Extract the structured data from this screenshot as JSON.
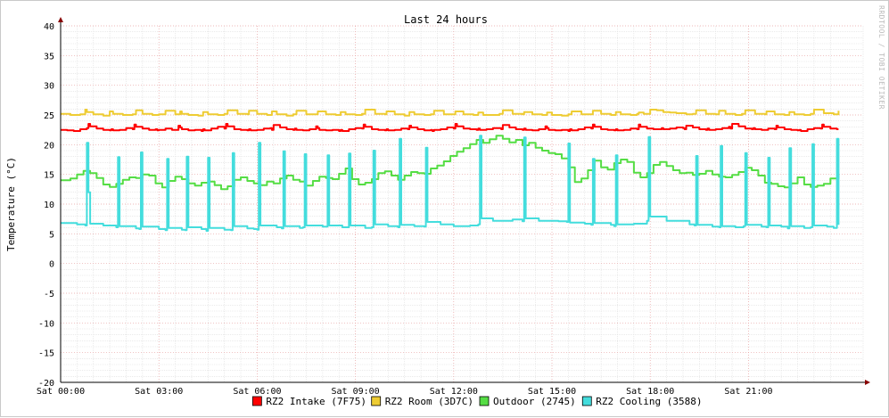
{
  "chart_data": {
    "type": "line",
    "title": "Last 24 hours",
    "ylabel": "Temperature (°C)",
    "xlabel": "",
    "watermark": "RRDTOOL / TOBI OETIKER",
    "ylim": [
      -20,
      40
    ],
    "yticks": [
      -20,
      -15,
      -10,
      -5,
      0,
      5,
      10,
      15,
      20,
      25,
      30,
      35,
      40
    ],
    "ytick_labels": [
      "-20",
      "-15",
      "-10",
      "-5",
      "0",
      "5",
      "10",
      "15",
      "20",
      "25",
      "30",
      "35",
      "40"
    ],
    "xlim": [
      0,
      24.5
    ],
    "xticks": [
      0,
      3,
      6,
      9,
      12,
      15,
      18,
      21
    ],
    "xtick_labels": [
      "Sat 00:00",
      "Sat 03:00",
      "Sat 06:00",
      "Sat 09:00",
      "Sat 12:00",
      "Sat 15:00",
      "Sat 18:00",
      "Sat 21:00"
    ],
    "grid": true,
    "legend_position": "bottom",
    "series": [
      {
        "name": "RZ2 Intake (7F75)",
        "color": "#ff0000",
        "x": [
          0,
          0.2,
          0.4,
          0.6,
          0.8,
          0.85,
          0.9,
          1.1,
          1.3,
          1.5,
          1.55,
          1.6,
          1.8,
          2,
          2.2,
          2.25,
          2.3,
          2.5,
          2.7,
          2.9,
          2.95,
          3,
          3.2,
          3.4,
          3.6,
          3.65,
          3.7,
          3.9,
          4.1,
          4.3,
          4.35,
          4.4,
          4.6,
          4.8,
          5,
          5.05,
          5.1,
          5.3,
          5.5,
          5.7,
          5.75,
          5.8,
          6,
          6.2,
          6.4,
          6.45,
          6.5,
          6.7,
          6.9,
          7.1,
          7.15,
          7.2,
          7.4,
          7.6,
          7.8,
          7.85,
          7.9,
          8.1,
          8.3,
          8.5,
          8.55,
          8.6,
          8.8,
          9,
          9.2,
          9.25,
          9.3,
          9.5,
          9.7,
          9.9,
          9.95,
          10,
          10.2,
          10.4,
          10.6,
          10.65,
          10.7,
          10.9,
          11.1,
          11.3,
          11.35,
          11.4,
          11.6,
          11.8,
          12,
          12.05,
          12.1,
          12.3,
          12.5,
          12.7,
          12.75,
          12.8,
          13,
          13.2,
          13.4,
          13.45,
          13.5,
          13.7,
          13.9,
          14.1,
          14.15,
          14.2,
          14.4,
          14.6,
          14.8,
          14.85,
          14.9,
          15.1,
          15.3,
          15.5,
          15.55,
          15.6,
          15.8,
          16,
          16.2,
          16.25,
          16.3,
          16.5,
          16.7,
          16.9,
          16.95,
          17,
          17.2,
          17.4,
          17.6,
          17.65,
          17.7,
          17.9,
          18.1,
          18.3,
          18.35,
          18.4,
          18.6,
          18.8,
          19,
          19.05,
          19.1,
          19.3,
          19.5,
          19.7,
          19.75,
          19.8,
          20,
          20.2,
          20.4,
          20.45,
          20.5,
          20.7,
          20.9,
          21.1,
          21.15,
          21.2,
          21.4,
          21.6,
          21.8,
          21.85,
          21.9,
          22.1,
          22.3,
          22.5,
          22.55,
          22.6,
          22.8,
          23,
          23.2,
          23.25,
          23.3,
          23.5,
          23.7,
          23.75
        ],
        "values": [
          22.5,
          22.4,
          22.3,
          22.6,
          22.8,
          23.5,
          23.1,
          22.7,
          22.5,
          22.4,
          22.6,
          22.4,
          22.5,
          22.8,
          22.6,
          23.4,
          23,
          22.7,
          22.5,
          22.6,
          22.4,
          22.5,
          22.7,
          22.5,
          23.2,
          22.9,
          22.6,
          22.4,
          22.5,
          22.3,
          22.6,
          22.4,
          22.7,
          23,
          22.7,
          23.5,
          23.1,
          22.6,
          22.5,
          22.4,
          22.6,
          22.4,
          22.5,
          22.7,
          22.8,
          22.5,
          23.3,
          22.9,
          22.6,
          22.5,
          22.7,
          22.5,
          22.4,
          22.6,
          23.1,
          22.8,
          22.5,
          22.4,
          22.5,
          22.3,
          22.5,
          22.3,
          22.6,
          22.8,
          22.7,
          23.4,
          23,
          22.6,
          22.5,
          22.4,
          22.6,
          22.4,
          22.5,
          22.7,
          22.6,
          23.2,
          22.9,
          22.6,
          22.4,
          22.5,
          22.3,
          22.5,
          22.6,
          22.9,
          22.7,
          23.5,
          23.1,
          22.7,
          22.6,
          22.5,
          22.7,
          22.5,
          22.6,
          22.8,
          22.8,
          22.6,
          23.3,
          22.9,
          22.6,
          22.5,
          22.7,
          22.5,
          22.4,
          22.6,
          23.1,
          22.8,
          22.5,
          22.4,
          22.5,
          22.3,
          22.6,
          22.4,
          22.6,
          22.9,
          22.7,
          23.4,
          23,
          22.6,
          22.5,
          22.4,
          22.6,
          22.4,
          22.5,
          22.7,
          22.6,
          23.4,
          23,
          22.7,
          22.6,
          22.6,
          22.8,
          22.6,
          22.7,
          22.9,
          22.8,
          22.6,
          23.2,
          22.9,
          22.6,
          22.5,
          22.7,
          22.5,
          22.6,
          22.8,
          23,
          22.7,
          23.5,
          23.1,
          22.7,
          22.6,
          22.8,
          22.6,
          22.5,
          22.7,
          22.6,
          23.2,
          22.9,
          22.6,
          22.5,
          22.4,
          22.5,
          22.3,
          22.6,
          22.8,
          22.7,
          23.4,
          23,
          22.7,
          22.6,
          22.6
        ]
      },
      {
        "name": "RZ2 Room (3D7C)",
        "color": "#eecc33",
        "x": [
          0,
          0.3,
          0.6,
          0.75,
          0.8,
          1,
          1.3,
          1.5,
          1.6,
          1.9,
          2.2,
          2.3,
          2.5,
          2.8,
          3,
          3.2,
          3.5,
          3.65,
          3.7,
          3.9,
          4.2,
          4.35,
          4.5,
          4.8,
          5,
          5.1,
          5.4,
          5.7,
          5.75,
          6,
          6.3,
          6.45,
          6.6,
          6.9,
          7.1,
          7.2,
          7.5,
          7.8,
          7.85,
          8.1,
          8.4,
          8.55,
          8.7,
          9,
          9.2,
          9.3,
          9.6,
          9.9,
          9.95,
          10.2,
          10.5,
          10.65,
          10.8,
          11.1,
          11.3,
          11.4,
          11.7,
          12,
          12.05,
          12.3,
          12.6,
          12.75,
          12.9,
          13.2,
          13.4,
          13.5,
          13.8,
          14.1,
          14.15,
          14.4,
          14.7,
          14.85,
          15,
          15.3,
          15.5,
          15.6,
          15.9,
          16.2,
          16.25,
          16.5,
          16.8,
          16.95,
          17.1,
          17.4,
          17.6,
          17.65,
          17.8,
          18,
          18.2,
          18.4,
          18.6,
          18.8,
          19.1,
          19.3,
          19.4,
          19.7,
          20,
          20.1,
          20.3,
          20.6,
          20.8,
          20.9,
          21.2,
          21.5,
          21.55,
          21.8,
          22.1,
          22.25,
          22.4,
          22.7,
          22.9,
          23,
          23.3,
          23.6,
          23.75
        ],
        "values": [
          25.2,
          25,
          25.1,
          25.9,
          25.5,
          25.1,
          24.9,
          25.6,
          25.2,
          25,
          25.1,
          25.8,
          25.2,
          25,
          25.1,
          25.7,
          25.1,
          25.6,
          25.2,
          25,
          24.9,
          25.5,
          25.1,
          25,
          25.2,
          25.8,
          25.2,
          25.1,
          25.7,
          25.2,
          25,
          25.6,
          25.1,
          24.9,
          25.1,
          25.7,
          25.1,
          25.1,
          25.6,
          25.1,
          25,
          25.5,
          25.1,
          25,
          25.2,
          25.9,
          25.2,
          25.1,
          25.6,
          25.1,
          24.9,
          25.5,
          25.1,
          25,
          25.1,
          25.7,
          25.1,
          25.1,
          25.6,
          25.1,
          25,
          25.4,
          25,
          25,
          25.2,
          25.8,
          25.2,
          25.1,
          25.5,
          25.1,
          25,
          25.4,
          25,
          24.9,
          25.1,
          25.6,
          25.1,
          25.1,
          25.7,
          25.2,
          25,
          25.5,
          25.1,
          25,
          25.2,
          25.4,
          25.2,
          25.9,
          25.8,
          25.5,
          25.4,
          25.3,
          25.1,
          25.2,
          25.8,
          25.2,
          25.1,
          25.7,
          25.2,
          25,
          25.2,
          25.8,
          25.2,
          25.1,
          25.6,
          25.1,
          25,
          25.5,
          25.1,
          25,
          25.2,
          25.9,
          25.3,
          25.1,
          25.7
        ]
      },
      {
        "name": "Outdoor (2745)",
        "color": "#55dd44",
        "x": [
          0,
          0.3,
          0.5,
          0.7,
          0.9,
          1.1,
          1.3,
          1.5,
          1.7,
          1.9,
          2.1,
          2.3,
          2.5,
          2.7,
          2.9,
          3.1,
          3.3,
          3.5,
          3.7,
          3.9,
          4.1,
          4.3,
          4.5,
          4.7,
          4.9,
          5.1,
          5.3,
          5.5,
          5.7,
          5.9,
          6.1,
          6.3,
          6.5,
          6.7,
          6.9,
          7.1,
          7.3,
          7.5,
          7.7,
          7.9,
          8.1,
          8.3,
          8.5,
          8.7,
          8.9,
          9.1,
          9.3,
          9.5,
          9.7,
          9.9,
          10.1,
          10.3,
          10.5,
          10.7,
          10.9,
          11.1,
          11.3,
          11.5,
          11.7,
          11.9,
          12.1,
          12.3,
          12.5,
          12.7,
          12.9,
          13.1,
          13.3,
          13.5,
          13.7,
          13.9,
          14.1,
          14.3,
          14.5,
          14.7,
          14.9,
          15.1,
          15.3,
          15.5,
          15.7,
          15.9,
          16.1,
          16.3,
          16.5,
          16.7,
          16.9,
          17.1,
          17.3,
          17.5,
          17.7,
          17.9,
          18.1,
          18.3,
          18.5,
          18.7,
          18.9,
          19.1,
          19.3,
          19.5,
          19.7,
          19.9,
          20.1,
          20.3,
          20.5,
          20.7,
          20.9,
          21.1,
          21.3,
          21.5,
          21.7,
          21.9,
          22.1,
          22.3,
          22.5,
          22.7,
          22.9,
          23.1,
          23.3,
          23.5,
          23.75
        ],
        "values": [
          14,
          14.3,
          15,
          15.6,
          15.2,
          14.4,
          13.3,
          12.9,
          13.4,
          14.1,
          14.5,
          14.4,
          15,
          14.8,
          13.5,
          12.8,
          13.9,
          14.6,
          14.2,
          13.5,
          13.1,
          13.6,
          13.8,
          13.2,
          12.5,
          13,
          14.1,
          14.5,
          13.9,
          13.5,
          13.2,
          13.8,
          13.5,
          14.3,
          14.8,
          14.1,
          13.8,
          13.1,
          13.9,
          14.6,
          14.4,
          14.2,
          15.1,
          16,
          14.2,
          13.3,
          13.6,
          14.2,
          15.2,
          15.5,
          14.8,
          14.1,
          14.8,
          15.4,
          15.2,
          15.1,
          16,
          16.5,
          17.2,
          18.1,
          18.8,
          19.4,
          20.1,
          20.8,
          20.3,
          20.9,
          21.5,
          21,
          20.4,
          20.8,
          19.9,
          20.3,
          19.5,
          19,
          18.6,
          18.4,
          17.7,
          16.2,
          13.7,
          14.3,
          15.7,
          17.3,
          16.2,
          15.8,
          16.9,
          17.5,
          17.1,
          15.3,
          14.5,
          15.2,
          16.6,
          17.1,
          16.4,
          15.7,
          15.2,
          15.3,
          14.9,
          15.1,
          15.6,
          15,
          14.6,
          14.5,
          14.9,
          15.4,
          16.1,
          15.7,
          14.8,
          13.6,
          13.4,
          13,
          12.8,
          13.5,
          14.5,
          13.3,
          12.9,
          13.1,
          13.4,
          14.3,
          15
        ]
      },
      {
        "name": "RZ2 Cooling (3588)",
        "color": "#44dddd",
        "x": [
          0,
          0.5,
          0.75,
          0.8,
          0.85,
          0.9,
          1.3,
          1.7,
          1.75,
          1.8,
          2.3,
          2.4,
          2.45,
          2.5,
          3,
          3.2,
          3.25,
          3.3,
          3.7,
          3.8,
          3.85,
          3.9,
          4.3,
          4.45,
          4.5,
          4.55,
          5,
          5.2,
          5.25,
          5.3,
          5.7,
          5.9,
          6,
          6.05,
          6.1,
          6.6,
          6.75,
          6.8,
          6.85,
          7.3,
          7.4,
          7.45,
          7.5,
          8,
          8.1,
          8.15,
          8.2,
          8.6,
          8.75,
          8.8,
          8.85,
          9.3,
          9.5,
          9.55,
          9.6,
          10,
          10.3,
          10.35,
          10.4,
          10.8,
          11.1,
          11.15,
          11.2,
          11.6,
          12,
          12.5,
          12.75,
          12.8,
          12.85,
          13.2,
          13.8,
          14.1,
          14.15,
          14.2,
          14.6,
          15.2,
          15.45,
          15.5,
          15.55,
          16,
          16.2,
          16.25,
          16.3,
          16.8,
          16.9,
          16.95,
          17,
          17.5,
          17.9,
          17.95,
          18,
          18.5,
          19.2,
          19.35,
          19.4,
          19.45,
          19.9,
          20.1,
          20.15,
          20.2,
          20.6,
          20.85,
          20.9,
          20.95,
          21.4,
          21.55,
          21.6,
          21.65,
          22,
          22.2,
          22.25,
          22.3,
          22.7,
          22.9,
          22.95,
          23,
          23.4,
          23.6,
          23.7,
          23.75
        ],
        "values": [
          6.8,
          6.6,
          6.4,
          20.3,
          12,
          6.7,
          6.4,
          6.1,
          17.9,
          6.3,
          5.9,
          5.8,
          18.7,
          6.2,
          5.8,
          5.6,
          17.6,
          6,
          5.7,
          5.6,
          18,
          6.1,
          5.8,
          5.5,
          17.8,
          6,
          5.7,
          5.6,
          18.6,
          6.3,
          5.9,
          5.8,
          5.7,
          20.3,
          6.4,
          6.1,
          5.9,
          18.9,
          6.3,
          6,
          6.1,
          18.4,
          6.4,
          6.2,
          6.2,
          18.2,
          6.4,
          6.1,
          6.1,
          18.5,
          6.4,
          6,
          6.1,
          19,
          6.6,
          6.3,
          6.1,
          21,
          6.5,
          6.3,
          6.2,
          19.5,
          7,
          6.6,
          6.3,
          6.4,
          6.6,
          21.5,
          7.6,
          7.2,
          7.4,
          7.1,
          21.2,
          7.6,
          7.2,
          7.1,
          7,
          20.2,
          6.9,
          6.7,
          6.5,
          17.6,
          6.8,
          6.5,
          6.3,
          18.2,
          6.6,
          6.7,
          7.2,
          21.3,
          7.9,
          7.2,
          6.6,
          6.4,
          18.1,
          6.5,
          6.2,
          6.1,
          19.8,
          6.3,
          6.1,
          6.3,
          18.6,
          6.5,
          6.2,
          6.1,
          17.8,
          6.4,
          6.2,
          5.9,
          19.4,
          6.3,
          6,
          6.1,
          20.1,
          6.4,
          6.2,
          6,
          21,
          6.5
        ]
      }
    ]
  }
}
